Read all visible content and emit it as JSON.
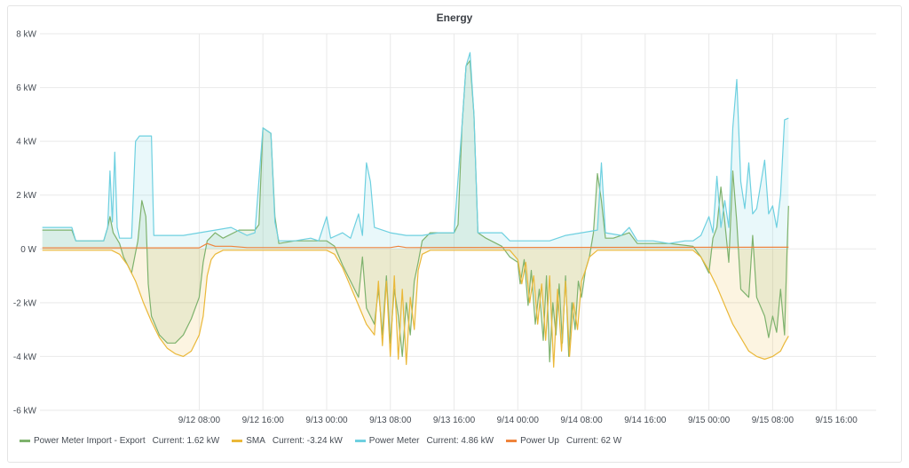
{
  "panel": {
    "title": "Energy"
  },
  "chart_data": {
    "type": "area",
    "title": "Energy",
    "xlabel": "",
    "ylabel": "",
    "y_unit": "kW",
    "ylim": [
      -6,
      8
    ],
    "y_ticks": [
      {
        "value": 8,
        "label": "8 kW"
      },
      {
        "value": 6,
        "label": "6 kW"
      },
      {
        "value": 4,
        "label": "4 kW"
      },
      {
        "value": 2,
        "label": "2 kW"
      },
      {
        "value": 0,
        "label": "0 W"
      },
      {
        "value": -2,
        "label": "-2 kW"
      },
      {
        "value": -4,
        "label": "-4 kW"
      },
      {
        "value": -6,
        "label": "-6 kW"
      }
    ],
    "xlim_hours": [
      -12,
      93
    ],
    "x_ticks": [
      {
        "hours": 8,
        "label": "9/12 08:00"
      },
      {
        "hours": 16,
        "label": "9/12 16:00"
      },
      {
        "hours": 24,
        "label": "9/13 00:00"
      },
      {
        "hours": 32,
        "label": "9/13 08:00"
      },
      {
        "hours": 40,
        "label": "9/13 16:00"
      },
      {
        "hours": 48,
        "label": "9/14 00:00"
      },
      {
        "hours": 56,
        "label": "9/14 08:00"
      },
      {
        "hours": 64,
        "label": "9/14 16:00"
      },
      {
        "hours": 72,
        "label": "9/15 00:00"
      },
      {
        "hours": 80,
        "label": "9/15 08:00"
      },
      {
        "hours": 88,
        "label": "9/15 16:00"
      }
    ],
    "grid": true,
    "legend_position": "bottom",
    "series": [
      {
        "name": "Power Meter Import - Export",
        "current": "Current: 1.62 kW",
        "color": "#7eb26d",
        "fill": true,
        "points": [
          [
            -11.7,
            0.7
          ],
          [
            -8,
            0.7
          ],
          [
            -7.5,
            0.3
          ],
          [
            -4,
            0.3
          ],
          [
            -3.5,
            0.8
          ],
          [
            -3.2,
            1.2
          ],
          [
            -2.8,
            0.6
          ],
          [
            -2,
            0.2
          ],
          [
            -1.5,
            -0.3
          ],
          [
            -0.5,
            -0.9
          ],
          [
            0.3,
            0.3
          ],
          [
            0.8,
            1.8
          ],
          [
            1.3,
            1.2
          ],
          [
            1.6,
            -1.3
          ],
          [
            2,
            -2.5
          ],
          [
            3,
            -3.2
          ],
          [
            4,
            -3.5
          ],
          [
            5,
            -3.5
          ],
          [
            6,
            -3.2
          ],
          [
            7,
            -2.6
          ],
          [
            8,
            -1.8
          ],
          [
            8.5,
            -0.5
          ],
          [
            9,
            0.3
          ],
          [
            10,
            0.6
          ],
          [
            11,
            0.4
          ],
          [
            13,
            0.7
          ],
          [
            15,
            0.7
          ],
          [
            15.5,
            0.9
          ],
          [
            16,
            4.5
          ],
          [
            17,
            4.3
          ],
          [
            17.5,
            1.2
          ],
          [
            18,
            0.2
          ],
          [
            20,
            0.3
          ],
          [
            22,
            0.3
          ],
          [
            24,
            0.3
          ],
          [
            25,
            0.1
          ],
          [
            26,
            -0.6
          ],
          [
            27,
            -1.2
          ],
          [
            28,
            -1.8
          ],
          [
            28.5,
            -0.3
          ],
          [
            29,
            -2.2
          ],
          [
            30,
            -2.8
          ],
          [
            30.5,
            -1.5
          ],
          [
            31,
            -3.2
          ],
          [
            31.5,
            -1.0
          ],
          [
            32,
            -3.5
          ],
          [
            32.5,
            -1.5
          ],
          [
            33,
            -2.5
          ],
          [
            33.5,
            -4.0
          ],
          [
            34,
            -2.0
          ],
          [
            34.5,
            -3.2
          ],
          [
            35,
            -1.2
          ],
          [
            35.5,
            -0.5
          ],
          [
            36,
            0.3
          ],
          [
            37,
            0.6
          ],
          [
            40,
            0.6
          ],
          [
            40.5,
            0.9
          ],
          [
            41,
            4.6
          ],
          [
            41.5,
            6.8
          ],
          [
            42,
            7.0
          ],
          [
            42.5,
            5.0
          ],
          [
            43,
            0.6
          ],
          [
            44,
            0.4
          ],
          [
            46,
            0.1
          ],
          [
            47,
            -0.3
          ],
          [
            48,
            -0.5
          ],
          [
            48.3,
            -1.3
          ],
          [
            48.8,
            -0.4
          ],
          [
            49.3,
            -2.1
          ],
          [
            49.7,
            -0.8
          ],
          [
            50.2,
            -2.8
          ],
          [
            50.7,
            -1.5
          ],
          [
            51.2,
            -3.4
          ],
          [
            51.6,
            -1.0
          ],
          [
            52,
            -4.2
          ],
          [
            52.4,
            -2.0
          ],
          [
            52.8,
            -3.2
          ],
          [
            53.2,
            -1.3
          ],
          [
            53.6,
            -3.5
          ],
          [
            54,
            -1.0
          ],
          [
            54.4,
            -4.0
          ],
          [
            54.8,
            -2.0
          ],
          [
            55.2,
            -3.0
          ],
          [
            55.6,
            -1.2
          ],
          [
            56,
            -1.8
          ],
          [
            56.5,
            -0.8
          ],
          [
            57,
            -0.3
          ],
          [
            57.5,
            0.6
          ],
          [
            58,
            2.8
          ],
          [
            58.5,
            1.8
          ],
          [
            59,
            0.4
          ],
          [
            60,
            0.4
          ],
          [
            62,
            0.6
          ],
          [
            63,
            0.2
          ],
          [
            65,
            0.2
          ],
          [
            67,
            0.2
          ],
          [
            70,
            0.1
          ],
          [
            71,
            -0.3
          ],
          [
            72,
            -0.9
          ],
          [
            72.5,
            0.4
          ],
          [
            73,
            0.8
          ],
          [
            73.5,
            2.3
          ],
          [
            74,
            1.0
          ],
          [
            74.5,
            -0.5
          ],
          [
            75,
            2.9
          ],
          [
            75.5,
            1.0
          ],
          [
            76,
            -1.5
          ],
          [
            77,
            -1.8
          ],
          [
            77.5,
            0.5
          ],
          [
            78,
            -1.8
          ],
          [
            79,
            -2.5
          ],
          [
            79.5,
            -3.3
          ],
          [
            80,
            -2.5
          ],
          [
            80.5,
            -3.1
          ],
          [
            81,
            -1.5
          ],
          [
            81.5,
            -3.2
          ],
          [
            81.8,
            -0.2
          ],
          [
            82,
            1.6
          ]
        ]
      },
      {
        "name": "SMA",
        "current": "Current: -3.24 kW",
        "color": "#eab839",
        "fill": true,
        "points": [
          [
            -11.7,
            -0.05
          ],
          [
            -3,
            -0.05
          ],
          [
            -2,
            -0.2
          ],
          [
            -1,
            -0.6
          ],
          [
            0,
            -1.2
          ],
          [
            1,
            -2.0
          ],
          [
            2,
            -2.7
          ],
          [
            3,
            -3.3
          ],
          [
            4,
            -3.7
          ],
          [
            5,
            -3.9
          ],
          [
            6,
            -4.0
          ],
          [
            7,
            -3.8
          ],
          [
            8,
            -3.2
          ],
          [
            8.5,
            -2.5
          ],
          [
            9,
            -1.0
          ],
          [
            9.5,
            -0.4
          ],
          [
            10,
            -0.2
          ],
          [
            11,
            -0.05
          ],
          [
            24,
            -0.05
          ],
          [
            25,
            -0.2
          ],
          [
            26,
            -0.7
          ],
          [
            27,
            -1.4
          ],
          [
            28,
            -2.1
          ],
          [
            29,
            -2.8
          ],
          [
            30,
            -3.2
          ],
          [
            30.5,
            -1.2
          ],
          [
            31,
            -3.6
          ],
          [
            31.5,
            -1.2
          ],
          [
            32,
            -4.0
          ],
          [
            32.5,
            -1.0
          ],
          [
            33,
            -4.1
          ],
          [
            33.5,
            -1.5
          ],
          [
            34,
            -4.3
          ],
          [
            34.5,
            -1.8
          ],
          [
            35,
            -3.0
          ],
          [
            35.5,
            -0.8
          ],
          [
            36,
            -0.2
          ],
          [
            37,
            -0.05
          ],
          [
            47,
            -0.05
          ],
          [
            48,
            -0.4
          ],
          [
            48.5,
            -1.3
          ],
          [
            49,
            -0.5
          ],
          [
            49.5,
            -2.0
          ],
          [
            50,
            -1.0
          ],
          [
            50.5,
            -2.8
          ],
          [
            51,
            -1.3
          ],
          [
            51.5,
            -3.4
          ],
          [
            52,
            -1.0
          ],
          [
            52.5,
            -4.4
          ],
          [
            53,
            -1.5
          ],
          [
            53.5,
            -3.8
          ],
          [
            54,
            -1.2
          ],
          [
            54.5,
            -4.0
          ],
          [
            55,
            -2.0
          ],
          [
            55.5,
            -3.0
          ],
          [
            56,
            -1.2
          ],
          [
            56.5,
            -0.8
          ],
          [
            57,
            -0.3
          ],
          [
            58,
            -0.05
          ],
          [
            70,
            -0.05
          ],
          [
            71,
            -0.3
          ],
          [
            72,
            -0.8
          ],
          [
            73,
            -1.4
          ],
          [
            74,
            -2.1
          ],
          [
            75,
            -2.8
          ],
          [
            76,
            -3.3
          ],
          [
            77,
            -3.8
          ],
          [
            78,
            -4.0
          ],
          [
            79,
            -4.1
          ],
          [
            80,
            -4.0
          ],
          [
            81,
            -3.8
          ],
          [
            81.5,
            -3.5
          ],
          [
            82,
            -3.24
          ]
        ]
      },
      {
        "name": "Power Meter",
        "current": "Current: 4.86 kW",
        "color": "#6ed0e0",
        "fill": true,
        "points": [
          [
            -11.7,
            0.8
          ],
          [
            -8,
            0.8
          ],
          [
            -7.5,
            0.3
          ],
          [
            -4,
            0.3
          ],
          [
            -3.5,
            0.8
          ],
          [
            -3.2,
            2.9
          ],
          [
            -2.9,
            1.0
          ],
          [
            -2.6,
            3.6
          ],
          [
            -2.3,
            0.8
          ],
          [
            -2,
            0.4
          ],
          [
            -1,
            0.4
          ],
          [
            -0.5,
            0.4
          ],
          [
            0,
            4.0
          ],
          [
            0.5,
            4.2
          ],
          [
            2,
            4.2
          ],
          [
            2.3,
            0.5
          ],
          [
            4,
            0.5
          ],
          [
            6,
            0.5
          ],
          [
            8,
            0.6
          ],
          [
            10,
            0.7
          ],
          [
            12,
            0.8
          ],
          [
            14,
            0.5
          ],
          [
            15,
            0.6
          ],
          [
            16,
            4.5
          ],
          [
            17,
            4.3
          ],
          [
            17.5,
            1.0
          ],
          [
            18,
            0.3
          ],
          [
            20,
            0.3
          ],
          [
            22,
            0.4
          ],
          [
            23,
            0.3
          ],
          [
            24,
            1.2
          ],
          [
            24.5,
            0.4
          ],
          [
            26,
            0.6
          ],
          [
            27,
            0.4
          ],
          [
            28,
            1.3
          ],
          [
            28.5,
            0.5
          ],
          [
            29,
            3.2
          ],
          [
            29.5,
            2.5
          ],
          [
            30,
            0.8
          ],
          [
            31,
            0.7
          ],
          [
            32,
            0.6
          ],
          [
            34,
            0.5
          ],
          [
            36,
            0.5
          ],
          [
            38,
            0.6
          ],
          [
            40,
            0.6
          ],
          [
            41,
            4.6
          ],
          [
            41.5,
            6.8
          ],
          [
            42,
            7.3
          ],
          [
            42.5,
            5.0
          ],
          [
            43,
            0.6
          ],
          [
            46,
            0.6
          ],
          [
            47,
            0.3
          ],
          [
            50,
            0.3
          ],
          [
            52,
            0.3
          ],
          [
            54,
            0.5
          ],
          [
            56,
            0.6
          ],
          [
            58,
            0.7
          ],
          [
            58.5,
            3.2
          ],
          [
            59,
            0.6
          ],
          [
            61,
            0.5
          ],
          [
            62,
            0.8
          ],
          [
            63,
            0.3
          ],
          [
            65,
            0.3
          ],
          [
            67,
            0.2
          ],
          [
            69,
            0.3
          ],
          [
            70,
            0.3
          ],
          [
            71,
            0.5
          ],
          [
            72,
            1.2
          ],
          [
            72.5,
            0.6
          ],
          [
            73,
            2.7
          ],
          [
            73.5,
            0.8
          ],
          [
            74,
            1.8
          ],
          [
            74.5,
            0.8
          ],
          [
            75,
            4.5
          ],
          [
            75.5,
            6.3
          ],
          [
            76,
            2.5
          ],
          [
            76.5,
            1.5
          ],
          [
            77,
            3.2
          ],
          [
            77.5,
            1.3
          ],
          [
            78,
            1.5
          ],
          [
            79,
            3.3
          ],
          [
            79.5,
            1.3
          ],
          [
            80,
            1.6
          ],
          [
            80.5,
            0.8
          ],
          [
            81,
            2.0
          ],
          [
            81.5,
            4.8
          ],
          [
            82,
            4.86
          ]
        ]
      },
      {
        "name": "Power Up",
        "current": "Current: 62 W",
        "color": "#ef843c",
        "fill": false,
        "points": [
          [
            -11.7,
            0.04
          ],
          [
            8,
            0.04
          ],
          [
            9,
            0.2
          ],
          [
            10,
            0.1
          ],
          [
            12,
            0.1
          ],
          [
            14,
            0.05
          ],
          [
            32,
            0.05
          ],
          [
            33,
            0.1
          ],
          [
            34,
            0.05
          ],
          [
            82,
            0.062
          ]
        ]
      }
    ]
  }
}
